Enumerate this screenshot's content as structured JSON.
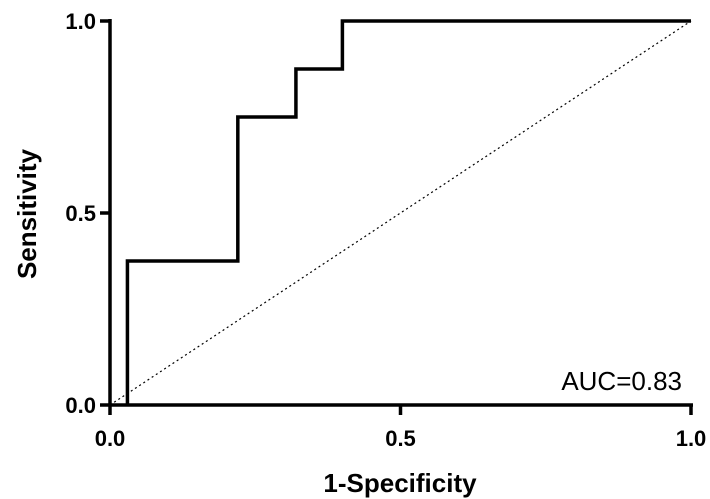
{
  "chart_data": {
    "type": "line",
    "title": "",
    "xlabel": "1-Specificity",
    "ylabel": "Sensitivity",
    "xlim": [
      0,
      1
    ],
    "ylim": [
      0,
      1
    ],
    "x_ticks": [
      "0.0",
      "0.5",
      "1.0"
    ],
    "y_ticks": [
      "0.0",
      "0.5",
      "1.0"
    ],
    "grid": false,
    "annotation": "AUC=0.83",
    "series": [
      {
        "type": "step",
        "color": "#000000",
        "x": [
          0.03,
          0.03,
          0.22,
          0.22,
          0.32,
          0.32,
          0.4,
          0.4,
          1.0
        ],
        "y": [
          0.0,
          0.375,
          0.375,
          0.75,
          0.75,
          0.875,
          0.875,
          1.0,
          1.0
        ]
      },
      {
        "type": "reference-diagonal",
        "style": "dotted",
        "color": "#000000",
        "x": [
          0,
          1
        ],
        "y": [
          0,
          1
        ]
      }
    ]
  }
}
